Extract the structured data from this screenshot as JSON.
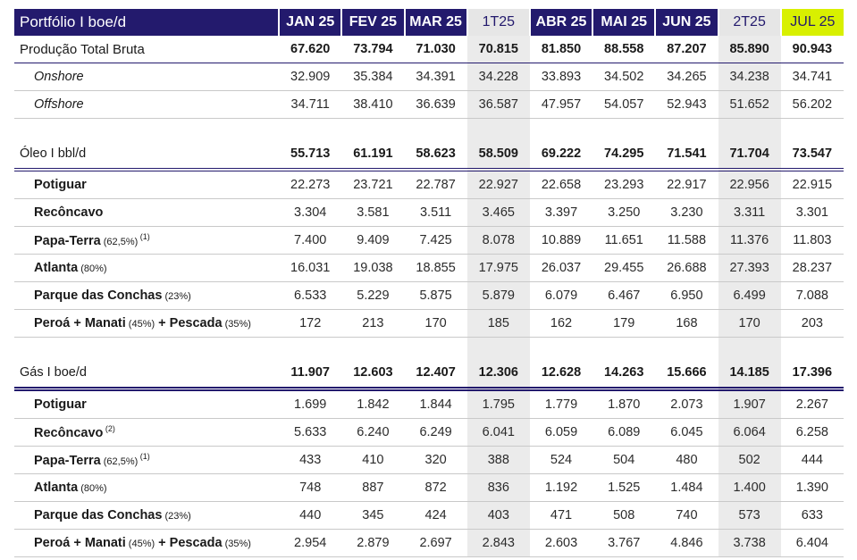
{
  "header": {
    "title": "Portfólio I boe/d",
    "columns": [
      "JAN 25",
      "FEV 25",
      "MAR 25",
      "1T25",
      "ABR 25",
      "MAI 25",
      "JUN 25",
      "2T25",
      "JUL 25"
    ]
  },
  "rows": {
    "total": {
      "label": "Produção Total Bruta",
      "values": [
        "67.620",
        "73.794",
        "71.030",
        "70.815",
        "81.850",
        "88.558",
        "87.207",
        "85.890",
        "90.943"
      ]
    },
    "onshore": {
      "label": "Onshore",
      "values": [
        "32.909",
        "35.384",
        "34.391",
        "34.228",
        "33.893",
        "34.502",
        "34.265",
        "34.238",
        "34.741"
      ]
    },
    "offshore": {
      "label": "Offshore",
      "values": [
        "34.711",
        "38.410",
        "36.639",
        "36.587",
        "47.957",
        "54.057",
        "52.943",
        "51.652",
        "56.202"
      ]
    },
    "oleo": {
      "label": "Óleo",
      "unit": " I bbl/d",
      "values": [
        "55.713",
        "61.191",
        "58.623",
        "58.509",
        "69.222",
        "74.295",
        "71.541",
        "71.704",
        "73.547"
      ]
    },
    "oleo_items": [
      {
        "label": "Potiguar",
        "pct": "",
        "sup": "",
        "values": [
          "22.273",
          "23.721",
          "22.787",
          "22.927",
          "22.658",
          "23.293",
          "22.917",
          "22.956",
          "22.915"
        ]
      },
      {
        "label": "Recôncavo",
        "pct": "",
        "sup": "",
        "values": [
          "3.304",
          "3.581",
          "3.511",
          "3.465",
          "3.397",
          "3.250",
          "3.230",
          "3.311",
          "3.301"
        ]
      },
      {
        "label": "Papa-Terra",
        "pct": " (62,5%)",
        "sup": " (1)",
        "values": [
          "7.400",
          "9.409",
          "7.425",
          "8.078",
          "10.889",
          "11.651",
          "11.588",
          "11.376",
          "11.803"
        ]
      },
      {
        "label": "Atlanta",
        "pct": " (80%)",
        "sup": "",
        "values": [
          "16.031",
          "19.038",
          "18.855",
          "17.975",
          "26.037",
          "29.455",
          "26.688",
          "27.393",
          "28.237"
        ]
      },
      {
        "label": "Parque das Conchas",
        "pct": " (23%)",
        "sup": "",
        "values": [
          "6.533",
          "5.229",
          "5.875",
          "5.879",
          "6.079",
          "6.467",
          "6.950",
          "6.499",
          "7.088"
        ]
      },
      {
        "label": "Peroá + Manati",
        "pct": " (45%)",
        "label2": " + Pescada",
        "pct2": " (35%)",
        "sup": "",
        "values": [
          "172",
          "213",
          "170",
          "185",
          "162",
          "179",
          "168",
          "170",
          "203"
        ]
      }
    ],
    "gas": {
      "label": "Gás",
      "unit": " I boe/d",
      "values": [
        "11.907",
        "12.603",
        "12.407",
        "12.306",
        "12.628",
        "14.263",
        "15.666",
        "14.185",
        "17.396"
      ]
    },
    "gas_items": [
      {
        "label": "Potiguar",
        "pct": "",
        "sup": "",
        "values": [
          "1.699",
          "1.842",
          "1.844",
          "1.795",
          "1.779",
          "1.870",
          "2.073",
          "1.907",
          "2.267"
        ]
      },
      {
        "label": "Recôncavo",
        "pct": "",
        "sup": " (2)",
        "values": [
          "5.633",
          "6.240",
          "6.249",
          "6.041",
          "6.059",
          "6.089",
          "6.045",
          "6.064",
          "6.258"
        ]
      },
      {
        "label": "Papa-Terra",
        "pct": " (62,5%)",
        "sup": " (1)",
        "values": [
          "433",
          "410",
          "320",
          "388",
          "524",
          "504",
          "480",
          "502",
          "444"
        ]
      },
      {
        "label": "Atlanta",
        "pct": " (80%)",
        "sup": "",
        "values": [
          "748",
          "887",
          "872",
          "836",
          "1.192",
          "1.525",
          "1.484",
          "1.400",
          "1.390"
        ]
      },
      {
        "label": "Parque das Conchas",
        "pct": " (23%)",
        "sup": "",
        "values": [
          "440",
          "345",
          "424",
          "403",
          "471",
          "508",
          "740",
          "573",
          "633"
        ]
      },
      {
        "label": "Peroá + Manati",
        "pct": " (45%)",
        "label2": " + Pescada",
        "pct2": " (35%)",
        "sup": "",
        "values": [
          "2.954",
          "2.879",
          "2.697",
          "2.843",
          "2.603",
          "3.767",
          "4.846",
          "3.738",
          "6.404"
        ]
      }
    ]
  },
  "colors": {
    "header_navy": "#231a6d",
    "quarter_gray": "#ebebeb",
    "highlight": "#d8f000"
  }
}
